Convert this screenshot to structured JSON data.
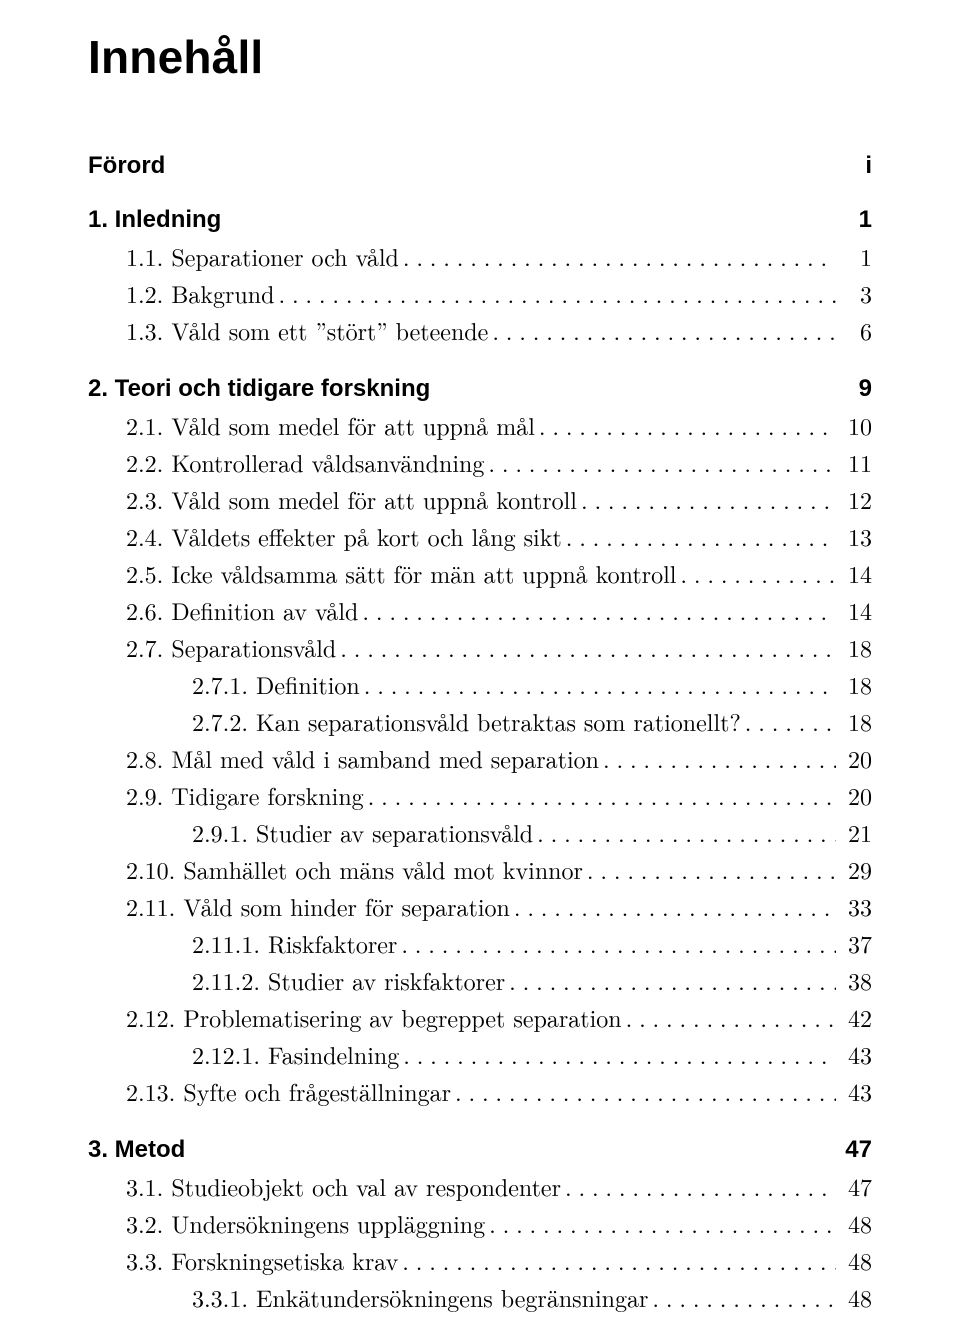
{
  "title": "Innehåll",
  "leader_char": ".",
  "entries": [
    {
      "type": "chapter",
      "label": "Förord",
      "page": "i"
    },
    {
      "type": "chapter",
      "label": "1. Inledning",
      "page": "1"
    },
    {
      "type": "section",
      "indent": 1,
      "num": "1.1.",
      "label": "Separationer och våld",
      "page": "1"
    },
    {
      "type": "section",
      "indent": 1,
      "num": "1.2.",
      "label": "Bakgrund",
      "page": "3"
    },
    {
      "type": "section",
      "indent": 1,
      "num": "1.3.",
      "label": "Våld som ett ”stört” beteende",
      "page": "6"
    },
    {
      "type": "chapter",
      "label": "2. Teori och tidigare forskning",
      "page": "9"
    },
    {
      "type": "section",
      "indent": 1,
      "num": "2.1.",
      "label": "Våld som medel för att uppnå mål",
      "page": "10"
    },
    {
      "type": "section",
      "indent": 1,
      "num": "2.2.",
      "label": "Kontrollerad våldsanvändning",
      "page": "11"
    },
    {
      "type": "section",
      "indent": 1,
      "num": "2.3.",
      "label": "Våld som medel för att uppnå kontroll",
      "page": "12"
    },
    {
      "type": "section",
      "indent": 1,
      "num": "2.4.",
      "label": "Våldets effekter på kort och lång sikt",
      "page": "13"
    },
    {
      "type": "section",
      "indent": 1,
      "num": "2.5.",
      "label": "Icke våldsamma sätt för män att uppnå kontroll",
      "page": "14"
    },
    {
      "type": "section",
      "indent": 1,
      "num": "2.6.",
      "label": "Definition av våld",
      "page": "14"
    },
    {
      "type": "section",
      "indent": 1,
      "num": "2.7.",
      "label": "Separationsvåld",
      "page": "18"
    },
    {
      "type": "section",
      "indent": 2,
      "num": "2.7.1.",
      "label": "Definition",
      "page": "18"
    },
    {
      "type": "section",
      "indent": 2,
      "num": "2.7.2.",
      "label": "Kan separationsvåld betraktas som rationellt?",
      "page": "18"
    },
    {
      "type": "section",
      "indent": 1,
      "num": "2.8.",
      "label": "Mål med våld i samband med separation",
      "page": "20"
    },
    {
      "type": "section",
      "indent": 1,
      "num": "2.9.",
      "label": "Tidigare forskning",
      "page": "20"
    },
    {
      "type": "section",
      "indent": 2,
      "num": "2.9.1.",
      "label": "Studier av separationsvåld",
      "page": "21"
    },
    {
      "type": "section",
      "indent": 1,
      "num": "2.10.",
      "label": "Samhället och mäns våld mot kvinnor",
      "page": "29"
    },
    {
      "type": "section",
      "indent": 1,
      "num": "2.11.",
      "label": "Våld som hinder för separation",
      "page": "33"
    },
    {
      "type": "section",
      "indent": 2,
      "num": "2.11.1.",
      "label": "Riskfaktorer",
      "page": "37"
    },
    {
      "type": "section",
      "indent": 2,
      "num": "2.11.2.",
      "label": "Studier av riskfaktorer",
      "page": "38"
    },
    {
      "type": "section",
      "indent": 1,
      "num": "2.12.",
      "label": "Problematisering av begreppet separation",
      "page": "42"
    },
    {
      "type": "section",
      "indent": 2,
      "num": "2.12.1.",
      "label": "Fasindelning",
      "page": "43"
    },
    {
      "type": "section",
      "indent": 1,
      "num": "2.13.",
      "label": "Syfte och frågeställningar",
      "page": "43"
    },
    {
      "type": "chapter",
      "label": "3. Metod",
      "page": "47"
    },
    {
      "type": "section",
      "indent": 1,
      "num": "3.1.",
      "label": "Studieobjekt och val av respondenter",
      "page": "47"
    },
    {
      "type": "section",
      "indent": 1,
      "num": "3.2.",
      "label": "Undersökningens uppläggning",
      "page": "48"
    },
    {
      "type": "section",
      "indent": 1,
      "num": "3.3.",
      "label": "Forskningsetiska krav",
      "page": "48"
    },
    {
      "type": "section",
      "indent": 2,
      "num": "3.3.1.",
      "label": "Enkätundersökningens begränsningar",
      "page": "48"
    }
  ]
}
